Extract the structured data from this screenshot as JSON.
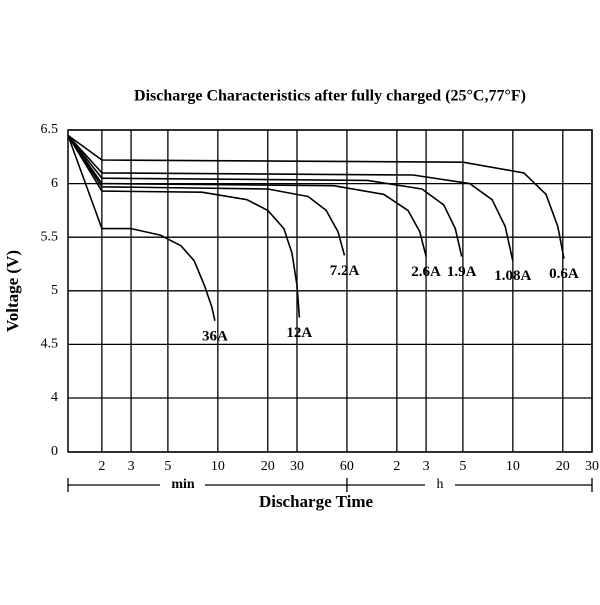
{
  "chart_data": {
    "type": "line",
    "title": "Discharge Characteristics after fully charged (25°C,77°F)",
    "x_label": "Discharge Time",
    "y_label": "Voltage (V)",
    "annotations": [
      "min",
      "h"
    ],
    "x_log_scale": true,
    "xlim": [
      1.25,
      1800
    ],
    "xticks": [
      2,
      3,
      5,
      10,
      20,
      30,
      60,
      {
        "value": 120,
        "label": "2"
      },
      {
        "value": 180,
        "label": "3"
      },
      {
        "value": 300,
        "label": "5"
      },
      {
        "value": 600,
        "label": "10"
      },
      {
        "value": 1200,
        "label": "20"
      },
      {
        "value": 1800,
        "label": "30"
      }
    ],
    "ylim": [
      0,
      6.5
    ],
    "y_axis_break": [
      0,
      4
    ],
    "yticks": [
      0,
      4,
      4.5,
      5,
      5.5,
      6,
      6.5
    ],
    "grid": true,
    "color": "#000000",
    "series": [
      {
        "name": "36A",
        "x": [
          1.25,
          2,
          3,
          4.5,
          6,
          7.2,
          8.3,
          9.2,
          9.6
        ],
        "values": [
          6.45,
          5.58,
          5.58,
          5.52,
          5.42,
          5.28,
          5.05,
          4.85,
          4.72
        ]
      },
      {
        "name": "12A",
        "x": [
          1.25,
          2,
          8,
          15,
          20,
          25,
          28,
          30,
          31
        ],
        "values": [
          6.45,
          5.93,
          5.92,
          5.85,
          5.75,
          5.58,
          5.35,
          5.05,
          4.75
        ]
      },
      {
        "name": "7.2A",
        "x": [
          1.25,
          2,
          20,
          35,
          45,
          53,
          58
        ],
        "values": [
          6.45,
          5.97,
          5.95,
          5.88,
          5.75,
          5.55,
          5.33
        ]
      },
      {
        "name": "2.6A",
        "x": [
          1.25,
          2,
          50,
          100,
          140,
          165,
          180
        ],
        "values": [
          6.45,
          6.0,
          5.98,
          5.9,
          5.75,
          5.55,
          5.32
        ]
      },
      {
        "name": "1.9A",
        "x": [
          1.25,
          2,
          80,
          170,
          230,
          270,
          295
        ],
        "values": [
          6.45,
          6.05,
          6.03,
          5.95,
          5.8,
          5.58,
          5.32
        ]
      },
      {
        "name": "1.08A",
        "x": [
          1.25,
          2,
          150,
          330,
          450,
          540,
          600
        ],
        "values": [
          6.45,
          6.1,
          6.08,
          6.0,
          5.85,
          5.6,
          5.28
        ]
      },
      {
        "name": "0.6A",
        "x": [
          1.25,
          2,
          300,
          700,
          950,
          1120,
          1220
        ],
        "values": [
          6.45,
          6.22,
          6.2,
          6.1,
          5.9,
          5.6,
          5.3
        ]
      }
    ]
  }
}
